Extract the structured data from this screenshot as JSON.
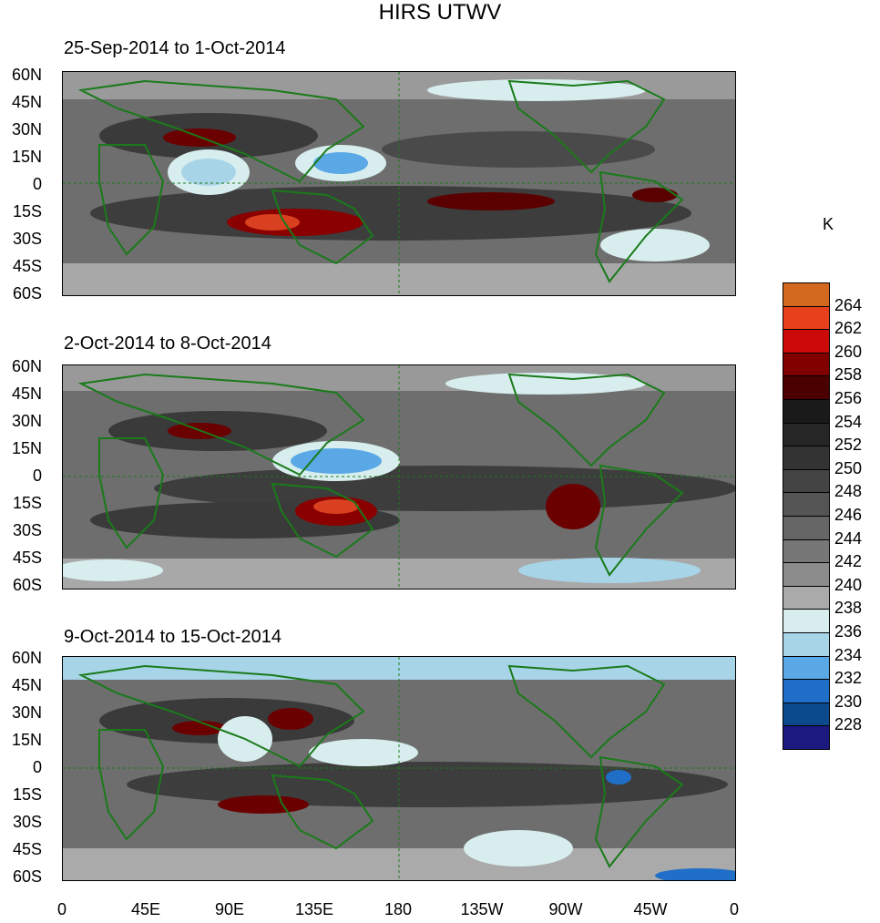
{
  "title": "HIRS UTWV",
  "panels": [
    {
      "period": "25-Sep-2014 to 1-Oct-2014"
    },
    {
      "period": "2-Oct-2014 to 8-Oct-2014"
    },
    {
      "period": "9-Oct-2014 to 15-Oct-2014"
    }
  ],
  "lat_labels": [
    "60N",
    "45N",
    "30N",
    "15N",
    "0",
    "15S",
    "30S",
    "45S",
    "60S"
  ],
  "lon_labels": [
    "0",
    "45E",
    "90E",
    "135E",
    "180",
    "135W",
    "90W",
    "45W",
    "0"
  ],
  "colorbar": {
    "unit": "K",
    "levels": [
      "264",
      "262",
      "260",
      "258",
      "256",
      "254",
      "252",
      "250",
      "248",
      "246",
      "244",
      "242",
      "240",
      "238",
      "236",
      "234",
      "232",
      "230",
      "228"
    ],
    "colors": [
      "#d2691e",
      "#e8401c",
      "#cc0a0a",
      "#800000",
      "#4a0000",
      "#1a1a1a",
      "#262626",
      "#333333",
      "#444444",
      "#555555",
      "#666666",
      "#777777",
      "#8c8c8c",
      "#aaaaaa",
      "#d8eeee",
      "#a8d4e8",
      "#5aa8e6",
      "#1f6fc8",
      "#0c4a8e",
      "#1a1a80"
    ]
  },
  "colors": {
    "coast": "#1a7a1a"
  }
}
